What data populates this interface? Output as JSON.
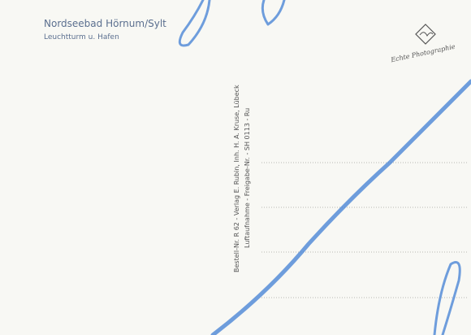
{
  "header": {
    "title": "Nordseebad Hörnum/Sylt",
    "subtitle": "Leuchtturm u. Hafen"
  },
  "imprint": {
    "line1": "Bestell-Nr. R 62 - Verlag E. Rubin, Inh. H. A. Kruse, Lübeck",
    "line2": "Luftaufnahme - Freigabe-Nr. - SH 0113 - Ru"
  },
  "logo": {
    "caption": "Echte Photographie"
  }
}
